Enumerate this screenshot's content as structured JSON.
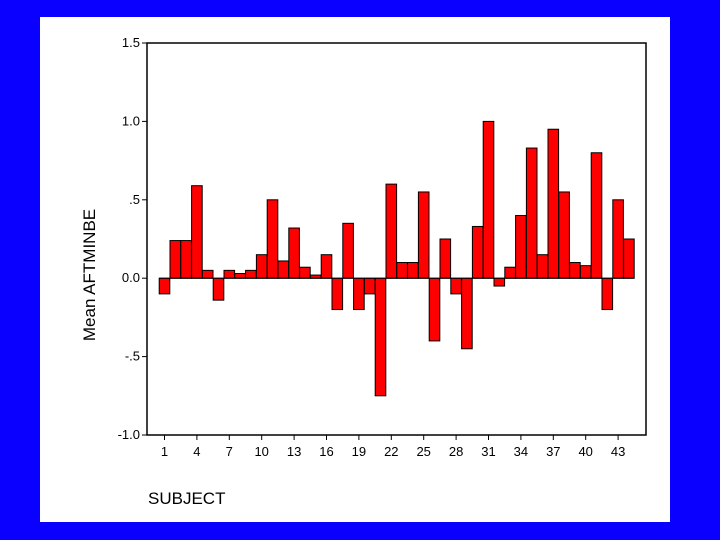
{
  "chart_data": {
    "type": "bar",
    "xlabel": "SUBJECT",
    "ylabel": "Mean AFTMINBE",
    "ylim": [
      -1.0,
      1.5
    ],
    "y_ticks": [
      {
        "value": 1.5,
        "label": "1.5"
      },
      {
        "value": 1.0,
        "label": "1.0"
      },
      {
        "value": 0.5,
        "label": ".5"
      },
      {
        "value": 0.0,
        "label": "0.0"
      },
      {
        "value": -0.5,
        "label": "-.5"
      },
      {
        "value": -1.0,
        "label": "-1.0"
      }
    ],
    "x_tick_labels": [
      "1",
      "4",
      "7",
      "10",
      "13",
      "16",
      "19",
      "22",
      "25",
      "28",
      "31",
      "34",
      "37",
      "40",
      "43"
    ],
    "categories": [
      "1",
      "2",
      "3",
      "4",
      "5",
      "6",
      "7",
      "8",
      "9",
      "10",
      "11",
      "12",
      "13",
      "14",
      "15",
      "16",
      "17",
      "18",
      "19",
      "20",
      "21",
      "22",
      "23",
      "24",
      "25",
      "26",
      "27",
      "28",
      "29",
      "30",
      "31",
      "32",
      "33",
      "34",
      "35",
      "36",
      "37",
      "38",
      "39",
      "40",
      "41",
      "42",
      "43",
      "44"
    ],
    "values": [
      -0.1,
      0.24,
      0.24,
      0.59,
      0.05,
      -0.14,
      0.05,
      0.03,
      0.05,
      0.15,
      0.5,
      0.11,
      0.32,
      0.07,
      0.02,
      0.15,
      -0.2,
      0.35,
      -0.2,
      -0.1,
      -0.75,
      0.6,
      0.1,
      0.1,
      0.55,
      -0.4,
      0.25,
      -0.1,
      -0.45,
      0.33,
      1.0,
      -0.05,
      0.07,
      0.4,
      0.83,
      0.15,
      0.95,
      0.55,
      0.1,
      0.08,
      0.8,
      -0.2,
      0.5,
      0.25
    ],
    "bar_color": "#ff0000",
    "bar_outline": "#000000",
    "grid": false
  },
  "colors": {
    "background": "#0a00ff",
    "panel": "#ffffff"
  }
}
